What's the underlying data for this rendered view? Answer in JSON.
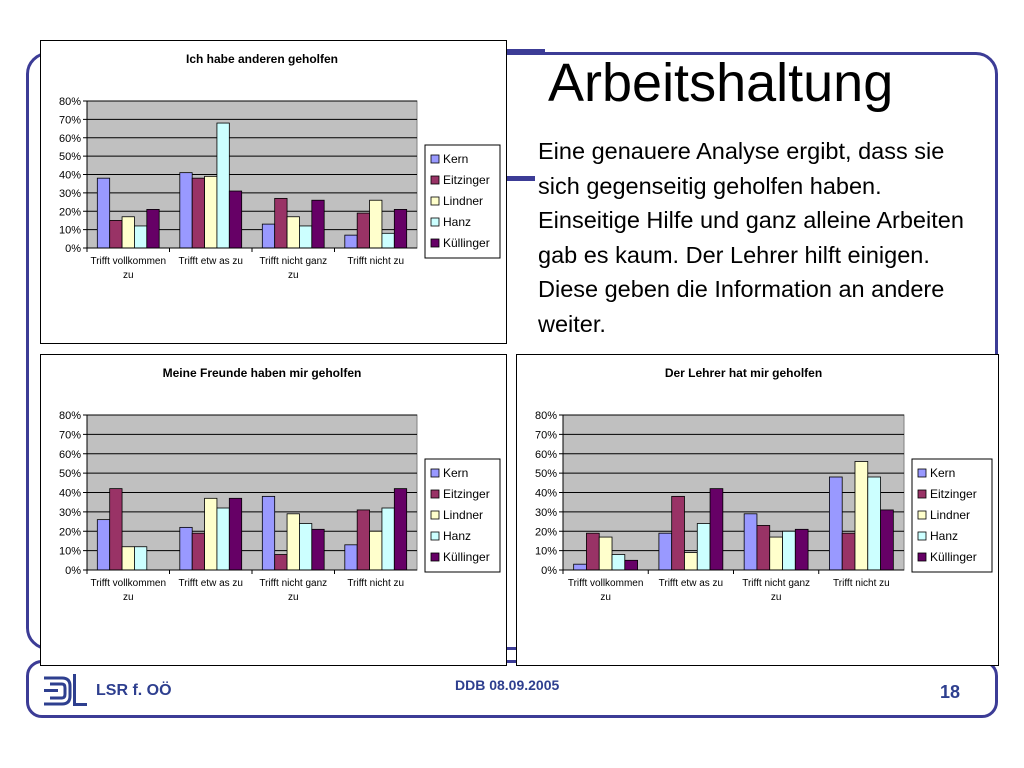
{
  "slide": {
    "title": "Arbeitshaltung",
    "body": "Eine genauere Analyse ergibt, dass sie sich gegenseitig geholfen haben. Einseitige Hilfe und ganz alleine Arbeiten gab es kaum. Der Lehrer hilft einigen. Diese geben die Information an andere weiter.",
    "footer_left": "LSR f. OÖ",
    "footer_center": "DDB 08.09.2005",
    "page_number": "18"
  },
  "colors": {
    "frame": "#3c3c96",
    "plot_bg": "#c0c0c0",
    "footer_text": "#2e3f8f"
  },
  "chart_data": [
    {
      "type": "bar",
      "title": "Ich habe anderen geholfen",
      "categories": [
        "Trifft vollkommen zu",
        "Trifft etw as zu",
        "Trifft nicht ganz zu",
        "Trifft nicht zu"
      ],
      "y_ticks": [
        "0%",
        "10%",
        "20%",
        "30%",
        "40%",
        "50%",
        "60%",
        "70%",
        "80%"
      ],
      "ylim": [
        0,
        80
      ],
      "grid": true,
      "legend_position": "right",
      "series": [
        {
          "name": "Kern",
          "color": "#9999ff",
          "values": [
            38,
            41,
            13,
            7
          ]
        },
        {
          "name": "Eitzinger",
          "color": "#993366",
          "values": [
            15,
            38,
            27,
            19
          ]
        },
        {
          "name": "Lindner",
          "color": "#ffffcc",
          "values": [
            17,
            39,
            17,
            26
          ]
        },
        {
          "name": "Hanz",
          "color": "#ccffff",
          "values": [
            12,
            68,
            12,
            8
          ]
        },
        {
          "name": "Küllinger",
          "color": "#660066",
          "values": [
            21,
            31,
            26,
            21
          ]
        }
      ]
    },
    {
      "type": "bar",
      "title": "Meine Freunde haben mir geholfen",
      "categories": [
        "Trifft vollkommen zu",
        "Trifft etw as zu",
        "Trifft nicht ganz zu",
        "Trifft nicht zu"
      ],
      "y_ticks": [
        "0%",
        "10%",
        "20%",
        "30%",
        "40%",
        "50%",
        "60%",
        "70%",
        "80%"
      ],
      "ylim": [
        0,
        80
      ],
      "grid": true,
      "legend_position": "right",
      "series": [
        {
          "name": "Kern",
          "color": "#9999ff",
          "values": [
            26,
            22,
            38,
            13
          ]
        },
        {
          "name": "Eitzinger",
          "color": "#993366",
          "values": [
            42,
            19,
            8,
            31
          ]
        },
        {
          "name": "Lindner",
          "color": "#ffffcc",
          "values": [
            12,
            37,
            29,
            20
          ]
        },
        {
          "name": "Hanz",
          "color": "#ccffff",
          "values": [
            12,
            32,
            24,
            32
          ]
        },
        {
          "name": "Küllinger",
          "color": "#660066",
          "values": [
            0,
            37,
            21,
            42
          ]
        }
      ]
    },
    {
      "type": "bar",
      "title": "Der Lehrer hat mir geholfen",
      "categories": [
        "Trifft vollkommen zu",
        "Trifft etw as zu",
        "Trifft nicht ganz zu",
        "Trifft nicht zu"
      ],
      "y_ticks": [
        "0%",
        "10%",
        "20%",
        "30%",
        "40%",
        "50%",
        "60%",
        "70%",
        "80%"
      ],
      "ylim": [
        0,
        80
      ],
      "grid": true,
      "legend_position": "right",
      "series": [
        {
          "name": "Kern",
          "color": "#9999ff",
          "values": [
            3,
            19,
            29,
            48
          ]
        },
        {
          "name": "Eitzinger",
          "color": "#993366",
          "values": [
            19,
            38,
            23,
            19
          ]
        },
        {
          "name": "Lindner",
          "color": "#ffffcc",
          "values": [
            17,
            9,
            17,
            56
          ]
        },
        {
          "name": "Hanz",
          "color": "#ccffff",
          "values": [
            8,
            24,
            20,
            48
          ]
        },
        {
          "name": "Küllinger",
          "color": "#660066",
          "values": [
            5,
            42,
            21,
            31
          ]
        }
      ]
    }
  ]
}
